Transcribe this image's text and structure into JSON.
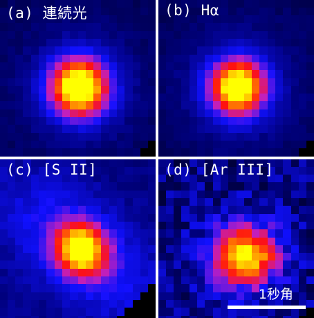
{
  "panels": [
    {
      "id": "a",
      "label": "(a) 連続光"
    },
    {
      "id": "b",
      "label": "(b) Hα"
    },
    {
      "id": "c",
      "label": "(c) [S II]"
    },
    {
      "id": "d",
      "label": "(d) [Ar III]"
    }
  ],
  "scale_bar": {
    "label": "1秒角"
  },
  "colors": {
    "colormap": [
      "#000000",
      "#00007a",
      "#1010ff",
      "#c020c0",
      "#ff1010",
      "#ff8000",
      "#ffff00"
    ],
    "divider": "#ffffff"
  }
}
